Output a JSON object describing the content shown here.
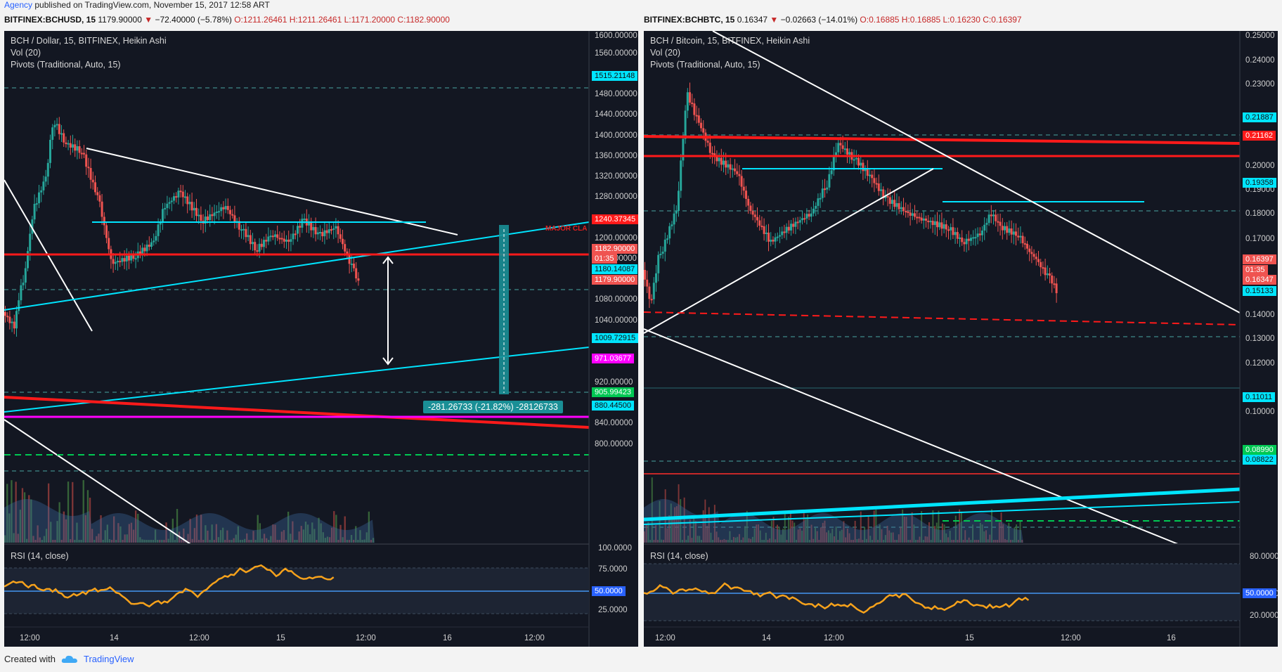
{
  "publisher": {
    "name": "Agency",
    "text": " published on TradingView.com, November 15, 2017 12:58 ART"
  },
  "left": {
    "symbol": "BITFINEX:BCHUSD, 15",
    "last": "1179.90000",
    "change": "−72.40000 (−5.78%)",
    "ohlc": "O:1211.26461 H:1211.26461 L:1171.20000 C:1182.90000",
    "legend": [
      "BCH / Dollar, 15, BITFINEX, Heikin Ashi",
      "Vol (20)",
      "Pivots (Traditional, Auto, 15)"
    ],
    "price_ticks": [
      "1600.00000",
      "1560.00000",
      "1480.00000",
      "1440.00000",
      "1400.00000",
      "1360.00000",
      "1320.00000",
      "1280.00000",
      "1200.00000",
      "1160.00000",
      "1080.00000",
      "1040.00000",
      "1000.00000",
      "960.00000",
      "920.00000",
      "840.00000",
      "800.00000"
    ],
    "tags": [
      {
        "text": "1515.21148",
        "color": "#00e5ff"
      },
      {
        "text": "1240.37345",
        "color": "#ff1a1a"
      },
      {
        "text": "1182.90000",
        "color": "#ef5350"
      },
      {
        "text": "01:35",
        "color": "#ef5350"
      },
      {
        "text": "1180.14087",
        "color": "#00e5ff"
      },
      {
        "text": "1179.90000",
        "color": "#ef5350"
      },
      {
        "text": "1009.72915",
        "color": "#00e5ff"
      },
      {
        "text": "971.03677",
        "color": "#ff00ff"
      },
      {
        "text": "905.99423",
        "color": "#00c853"
      },
      {
        "text": "880.44500",
        "color": "#00e5ff"
      }
    ],
    "major_label": "MAJOR CLA",
    "measure": "-281.26733 (-21.82%) -28126733",
    "rsi_label": "RSI (14, close)",
    "rsi_ticks": [
      "100.0000",
      "75.0000",
      "25.0000"
    ],
    "rsi_tag": "50.0000",
    "x_labels": [
      "12:00",
      "14",
      "12:00",
      "15",
      "12:00",
      "16",
      "12:00"
    ]
  },
  "right": {
    "symbol": "BITFINEX:BCHBTC, 15",
    "last": "0.16347",
    "change": "−0.02663 (−14.01%)",
    "ohlc": "O:0.16885 H:0.16885 L:0.16230 C:0.16397",
    "legend": [
      "BCH / Bitcoin, 15, BITFINEX, Heikin Ashi",
      "Vol (20)",
      "Pivots (Traditional, Auto, 15)"
    ],
    "price_ticks": [
      "0.25000",
      "0.24000",
      "0.23000",
      "0.20000",
      "0.19000",
      "0.18000",
      "0.17000",
      "0.14000",
      "0.13000",
      "0.12000",
      "0.10000"
    ],
    "tags": [
      {
        "text": "0.21887",
        "color": "#00e5ff"
      },
      {
        "text": "0.21162",
        "color": "#ff1a1a"
      },
      {
        "text": "0.19358",
        "color": "#00e5ff"
      },
      {
        "text": "0.16397",
        "color": "#ef5350"
      },
      {
        "text": "01:35",
        "color": "#ef5350"
      },
      {
        "text": "0.16347",
        "color": "#ef5350"
      },
      {
        "text": "0.15133",
        "color": "#00e5ff"
      },
      {
        "text": "0.11011",
        "color": "#00e5ff"
      },
      {
        "text": "0.08990",
        "color": "#00c853"
      },
      {
        "text": "0.08822",
        "color": "#00e5ff"
      }
    ],
    "rsi_label": "RSI (14, close)",
    "rsi_ticks": [
      "80.0000",
      "40.0000",
      "20.0000"
    ],
    "rsi_tag": "50.0000",
    "x_labels": [
      "12:00",
      "14",
      "12:00",
      "15",
      "12:00",
      "16"
    ]
  },
  "footer": {
    "created": "Created with",
    "brand": "TradingView"
  },
  "colors": {
    "bg": "#131722",
    "up": "#26a69a",
    "down": "#ef5350",
    "cyan": "#00e5ff",
    "red": "#ff1a1a",
    "rsi": "#f7a21b"
  }
}
